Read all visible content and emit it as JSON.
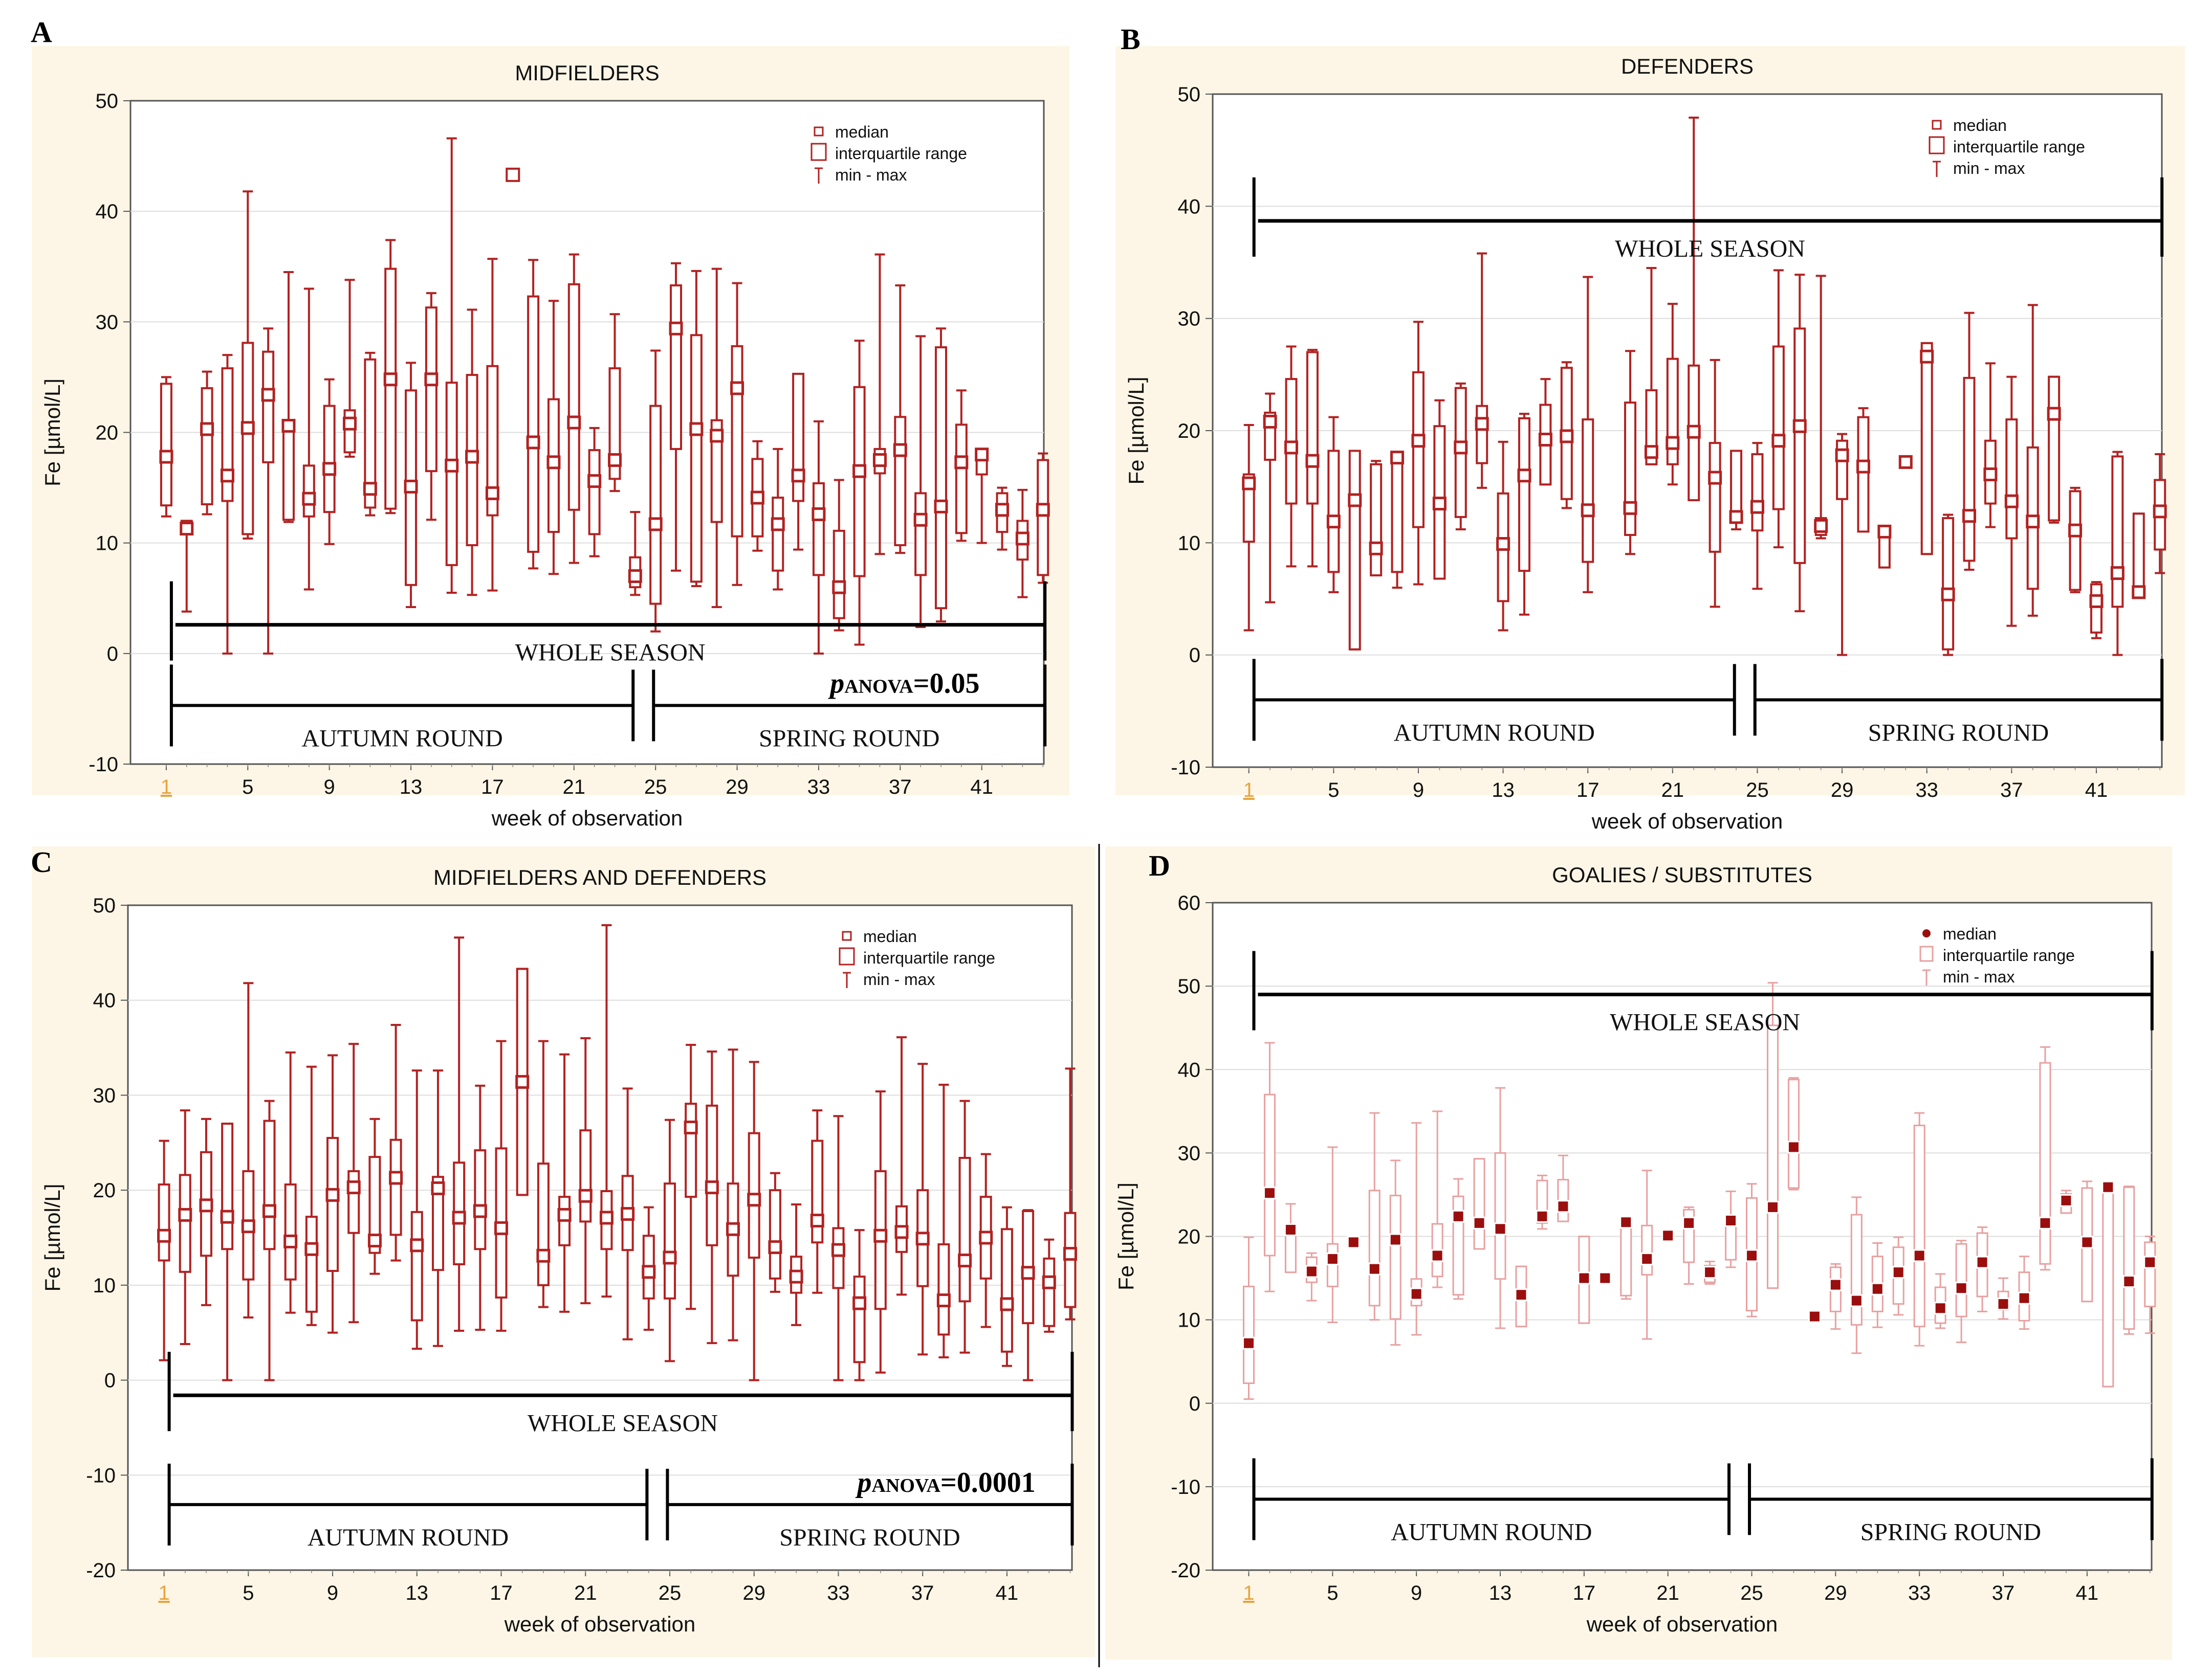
{
  "figure": {
    "panels": [
      {
        "letter": "A",
        "title": "MIDFIELDERS"
      },
      {
        "letter": "B",
        "title": "DEFENDERS"
      },
      {
        "letter": "C",
        "title": "MIDFIELDERS AND DEFENDERS"
      },
      {
        "letter": "D",
        "title": "GOALIES / SUBSTITUTES"
      }
    ],
    "colors": {
      "background": "#fdf6e6",
      "box": "#b22222",
      "box_light": "#e8a0a0",
      "tick_highlight": "#e8a33d",
      "bracket": "#000000"
    }
  },
  "chart_data": [
    {
      "type": "boxplot",
      "panel": "A",
      "title": "MIDFIELDERS",
      "xlabel": "week of observation",
      "ylabel": "Fe [µmol/L]",
      "ylim": [
        -10,
        50
      ],
      "yticks": [
        -10,
        0,
        10,
        20,
        30,
        40,
        50
      ],
      "xticks": [
        "1",
        "5",
        "9",
        "13",
        "17",
        "21",
        "25",
        "29",
        "33",
        "37",
        "41"
      ],
      "legend": [
        "median",
        "interquartile range",
        "min - max"
      ],
      "legend_style": "box",
      "outlier": {
        "week": 18,
        "value": 43.3
      },
      "median": [
        17.8,
        11.3,
        20.3,
        16.1,
        20.4,
        23.4,
        20.6,
        14.0,
        16.7,
        20.8,
        14.9,
        24.8,
        15.1,
        24.8,
        17.0,
        17.8,
        14.5,
        null,
        19.1,
        17.3,
        20.9,
        15.6,
        17.5,
        7.0,
        11.7,
        29.4,
        20.3,
        19.7,
        24.0,
        14.1,
        11.7,
        16.1,
        12.6,
        6.0,
        16.5,
        17.5,
        18.4,
        12.1,
        13.3,
        17.3,
        18.0,
        13.0,
        10.4,
        13.0
      ],
      "q1": [
        13.4,
        11.0,
        13.5,
        13.8,
        10.8,
        17.3,
        12.1,
        12.4,
        12.8,
        18.2,
        13.2,
        13.1,
        6.2,
        16.5,
        8.0,
        9.8,
        12.5,
        null,
        9.2,
        11.0,
        13.0,
        10.8,
        15.8,
        6.0,
        4.5,
        18.5,
        6.5,
        11.9,
        10.6,
        10.6,
        7.5,
        13.8,
        7.1,
        3.2,
        7.0,
        16.3,
        9.8,
        7.1,
        4.1,
        10.9,
        16.2,
        11.0,
        8.5,
        7.1
      ],
      "q3": [
        24.4,
        12.0,
        24.0,
        25.8,
        28.1,
        27.3,
        20.9,
        17.0,
        22.4,
        22.0,
        26.6,
        34.8,
        23.8,
        31.3,
        24.5,
        25.2,
        26.0,
        null,
        32.3,
        23.0,
        33.4,
        18.4,
        25.8,
        8.7,
        22.4,
        33.3,
        28.8,
        21.1,
        27.8,
        17.6,
        14.1,
        25.3,
        15.4,
        11.1,
        24.1,
        18.5,
        21.4,
        14.5,
        27.7,
        20.7,
        18.3,
        14.5,
        12.0,
        17.5
      ],
      "min": [
        12.4,
        3.8,
        12.6,
        0.0,
        10.4,
        0.0,
        11.9,
        5.8,
        9.9,
        17.8,
        12.5,
        12.7,
        4.2,
        12.1,
        5.5,
        5.3,
        5.7,
        null,
        7.7,
        7.2,
        8.2,
        8.8,
        14.7,
        5.3,
        2.0,
        7.5,
        6.1,
        4.2,
        6.2,
        9.3,
        5.8,
        9.4,
        0.0,
        2.1,
        0.8,
        9.0,
        9.1,
        2.4,
        2.9,
        10.2,
        10.0,
        9.4,
        5.1,
        6.4
      ],
      "max": [
        25.0,
        12.0,
        25.5,
        27.0,
        41.8,
        29.4,
        34.5,
        33.0,
        24.8,
        33.8,
        27.2,
        37.4,
        26.3,
        32.6,
        46.6,
        31.1,
        35.7,
        null,
        35.6,
        31.9,
        36.1,
        20.4,
        30.7,
        12.8,
        27.4,
        35.3,
        34.6,
        34.8,
        33.5,
        19.2,
        18.5,
        25.2,
        21.0,
        15.7,
        28.3,
        36.1,
        33.3,
        28.7,
        29.4,
        23.8,
        18.2,
        15.0,
        14.8,
        18.1
      ],
      "annotations": {
        "whole_season": {
          "label": "WHOLE SEASON",
          "value": 2.6
        },
        "autumn_round": {
          "label": "AUTUMN ROUND",
          "value": -4.7,
          "weeks": [
            1,
            24
          ]
        },
        "spring_round": {
          "label": "SPRING ROUND",
          "value": -4.7,
          "weeks": [
            25,
            44
          ]
        },
        "p_value": {
          "prefix": "p",
          "sub": "ANOVA",
          "text": "=0.05"
        }
      }
    },
    {
      "type": "boxplot",
      "panel": "B",
      "title": "DEFENDERS",
      "xlabel": "week of observation",
      "ylabel": "Fe [µmol/L]",
      "ylim": [
        -10,
        50
      ],
      "yticks": [
        -10,
        0,
        10,
        20,
        30,
        40,
        50
      ],
      "xticks": [
        "1",
        "5",
        "9",
        "13",
        "17",
        "21",
        "25",
        "29",
        "33",
        "37",
        "41"
      ],
      "legend": [
        "median",
        "interquartile range",
        "min - max"
      ],
      "legend_style": "box",
      "median": [
        15.3,
        20.8,
        18.5,
        17.3,
        11.9,
        13.8,
        9.5,
        17.6,
        19.1,
        13.5,
        18.5,
        20.6,
        9.9,
        16.0,
        19.2,
        19.5,
        12.9,
        null,
        13.1,
        18.1,
        18.9,
        19.9,
        15.8,
        12.3,
        13.2,
        19.1,
        20.4,
        11.5,
        17.8,
        16.8,
        11.0,
        17.2,
        26.6,
        5.4,
        12.4,
        16.1,
        13.7,
        11.9,
        21.5,
        11.1,
        4.8,
        7.3,
        5.6,
        12.8
      ],
      "q1": [
        10.1,
        17.4,
        13.5,
        13.5,
        7.4,
        0.5,
        7.1,
        7.4,
        11.4,
        6.8,
        12.3,
        17.1,
        4.8,
        7.5,
        15.2,
        13.9,
        8.3,
        null,
        10.7,
        17.0,
        17.0,
        13.8,
        9.2,
        11.9,
        11.1,
        13.0,
        8.2,
        10.7,
        13.9,
        11.0,
        7.8,
        17.0,
        9.0,
        0.5,
        8.4,
        13.5,
        10.4,
        5.9,
        12.0,
        5.8,
        2.0,
        4.3,
        5.3,
        9.4
      ],
      "q3": [
        16.1,
        21.6,
        24.6,
        27.0,
        18.2,
        18.2,
        17.0,
        18.1,
        25.2,
        20.4,
        23.8,
        22.2,
        14.4,
        21.1,
        22.3,
        25.6,
        21.0,
        null,
        22.5,
        23.6,
        26.4,
        25.8,
        18.9,
        18.2,
        17.9,
        27.5,
        29.1,
        12.2,
        19.1,
        21.2,
        11.0,
        17.5,
        27.8,
        12.2,
        24.7,
        19.1,
        21.0,
        18.5,
        24.8,
        14.6,
        6.3,
        17.7,
        12.6,
        15.6
      ],
      "min": [
        2.2,
        4.7,
        7.9,
        7.9,
        5.6,
        0.5,
        7.1,
        6.0,
        6.3,
        6.8,
        11.2,
        14.9,
        2.2,
        3.6,
        15.2,
        13.1,
        5.6,
        null,
        9.0,
        17.0,
        15.2,
        13.9,
        4.3,
        11.2,
        5.9,
        9.6,
        3.9,
        10.4,
        0.0,
        11.5,
        7.8,
        17.0,
        9.0,
        0.0,
        7.6,
        11.4,
        2.6,
        3.5,
        11.8,
        5.6,
        1.5,
        0.0,
        5.1,
        7.3
      ],
      "max": [
        20.5,
        23.3,
        27.5,
        27.2,
        21.2,
        18.2,
        17.3,
        18.1,
        29.7,
        22.7,
        24.2,
        35.8,
        19.0,
        21.5,
        24.6,
        26.1,
        33.7,
        null,
        27.1,
        34.5,
        31.3,
        47.9,
        26.3,
        18.2,
        18.9,
        34.3,
        33.9,
        33.8,
        19.7,
        22.0,
        11.5,
        17.7,
        27.8,
        12.5,
        30.5,
        26.0,
        24.8,
        31.2,
        24.8,
        14.9,
        6.5,
        18.1,
        12.6,
        17.9
      ],
      "annotations": {
        "whole_season": {
          "label": "WHOLE SEASON",
          "value": 38.7
        },
        "autumn_round": {
          "label": "AUTUMN ROUND",
          "value": -4.0,
          "weeks": [
            1,
            24
          ]
        },
        "spring_round": {
          "label": "SPRING ROUND",
          "value": -4.0,
          "weeks": [
            25,
            44
          ]
        }
      }
    },
    {
      "type": "boxplot",
      "panel": "C",
      "title": "MIDFIELDERS AND DEFENDERS",
      "xlabel": "week of observation",
      "ylabel": "Fe [µmol/L]",
      "ylim": [
        -20,
        50
      ],
      "yticks": [
        -20,
        -10,
        0,
        10,
        20,
        30,
        40,
        50
      ],
      "xticks": [
        "1",
        "5",
        "9",
        "13",
        "17",
        "21",
        "25",
        "29",
        "33",
        "37",
        "41"
      ],
      "legend": [
        "median",
        "interquartile range",
        "min - max"
      ],
      "legend_style": "box",
      "median": [
        15.2,
        17.4,
        18.4,
        17.2,
        16.2,
        17.8,
        14.6,
        13.8,
        19.5,
        20.3,
        14.7,
        21.3,
        14.2,
        20.2,
        17.1,
        17.8,
        16.0,
        31.4,
        13.1,
        17.4,
        19.4,
        17.1,
        17.5,
        11.4,
        12.9,
        26.6,
        20.3,
        15.9,
        19.0,
        14.0,
        10.9,
        16.8,
        13.7,
        8.1,
        15.2,
        15.6,
        14.9,
        8.4,
        12.6,
        15.0,
        8.0,
        11.3,
        10.3,
        13.3
      ],
      "q1": [
        12.6,
        11.4,
        13.1,
        13.8,
        10.6,
        13.8,
        10.6,
        7.2,
        11.5,
        15.5,
        13.4,
        15.3,
        6.3,
        11.6,
        12.2,
        13.8,
        8.7,
        19.5,
        10.0,
        14.2,
        16.7,
        13.8,
        13.7,
        8.6,
        8.6,
        19.3,
        14.2,
        11.0,
        12.9,
        10.7,
        9.2,
        14.5,
        9.7,
        1.9,
        7.5,
        13.5,
        9.9,
        4.8,
        8.3,
        10.7,
        3.0,
        6.0,
        5.7,
        7.7
      ],
      "q3": [
        20.6,
        21.6,
        24.0,
        27.0,
        22.0,
        27.3,
        20.6,
        17.2,
        25.5,
        22.0,
        23.5,
        25.3,
        17.7,
        21.4,
        22.9,
        24.2,
        24.4,
        43.3,
        22.8,
        19.3,
        26.3,
        19.9,
        21.5,
        15.2,
        20.7,
        29.1,
        28.9,
        20.7,
        26.0,
        20.0,
        13.0,
        25.2,
        16.0,
        10.9,
        22.0,
        18.3,
        20.0,
        14.3,
        23.4,
        19.3,
        15.9,
        17.8,
        12.8,
        17.6
      ],
      "min": [
        2.1,
        3.8,
        7.9,
        0.0,
        6.6,
        0.0,
        7.1,
        5.8,
        5.0,
        6.1,
        11.2,
        12.6,
        3.3,
        3.6,
        5.2,
        5.3,
        5.2,
        19.5,
        7.7,
        7.2,
        8.1,
        8.8,
        4.3,
        5.3,
        2.0,
        7.5,
        3.9,
        4.2,
        0.0,
        9.3,
        5.8,
        9.2,
        0.0,
        0.0,
        0.8,
        9.0,
        2.7,
        2.4,
        2.9,
        5.6,
        1.5,
        0.0,
        5.1,
        6.4
      ],
      "max": [
        25.2,
        28.4,
        27.5,
        27.0,
        41.8,
        29.4,
        34.5,
        33.0,
        34.2,
        35.4,
        27.5,
        37.4,
        32.6,
        32.6,
        46.6,
        31.0,
        35.7,
        43.3,
        35.7,
        34.3,
        36.0,
        47.9,
        30.7,
        18.2,
        27.4,
        35.3,
        34.6,
        34.8,
        33.5,
        21.8,
        18.5,
        28.4,
        27.8,
        15.8,
        30.4,
        36.1,
        33.3,
        31.1,
        29.4,
        23.8,
        18.2,
        17.9,
        14.8,
        32.8
      ],
      "annotations": {
        "whole_season": {
          "label": "WHOLE SEASON",
          "value": -1.6
        },
        "autumn_round": {
          "label": "AUTUMN ROUND",
          "value": -13.1,
          "weeks": [
            1,
            24
          ]
        },
        "spring_round": {
          "label": "SPRING ROUND",
          "value": -13.1,
          "weeks": [
            25,
            44
          ]
        },
        "p_value": {
          "prefix": "p",
          "sub": "ANOVA",
          "text": "=0.0001"
        }
      }
    },
    {
      "type": "boxplot",
      "panel": "D",
      "title": "GOALIES / SUBSTITUTES",
      "xlabel": "week of observation",
      "ylabel": "Fe [µmol/L]",
      "ylim": [
        -20,
        60
      ],
      "yticks": [
        -20,
        -10,
        0,
        10,
        20,
        30,
        40,
        50,
        60
      ],
      "xticks": [
        "1",
        "5",
        "9",
        "13",
        "17",
        "21",
        "25",
        "29",
        "33",
        "37",
        "41"
      ],
      "legend": [
        "median",
        "interquartile range",
        "min - max"
      ],
      "legend_style": "dot",
      "median": [
        7.2,
        25.2,
        20.8,
        15.8,
        17.3,
        19.3,
        16.1,
        19.6,
        13.1,
        17.7,
        22.4,
        21.6,
        20.9,
        13.0,
        22.4,
        23.6,
        15.0,
        15.0,
        21.7,
        17.3,
        20.1,
        21.6,
        15.7,
        21.9,
        17.7,
        23.5,
        30.7,
        10.4,
        14.2,
        12.3,
        13.7,
        15.7,
        17.7,
        11.4,
        13.8,
        16.9,
        11.9,
        12.6,
        21.6,
        24.3,
        19.3,
        25.9,
        14.6,
        16.9
      ],
      "q1": [
        2.4,
        17.7,
        15.7,
        14.5,
        14.0,
        19.3,
        11.7,
        10.1,
        11.7,
        15.2,
        13.0,
        18.5,
        14.9,
        9.2,
        21.6,
        21.8,
        9.6,
        15.0,
        12.9,
        15.4,
        20.1,
        16.9,
        14.5,
        17.2,
        11.1,
        13.8,
        25.8,
        10.4,
        11.0,
        9.4,
        11.0,
        11.9,
        9.2,
        9.6,
        10.4,
        12.8,
        11.2,
        9.9,
        16.7,
        22.8,
        12.2,
        2.0,
        8.9,
        11.6
      ],
      "q3": [
        14.0,
        37.0,
        21.1,
        17.5,
        19.1,
        19.3,
        25.5,
        24.9,
        14.9,
        21.5,
        24.8,
        29.3,
        30.0,
        16.4,
        26.7,
        26.8,
        20.0,
        15.0,
        21.8,
        21.3,
        20.1,
        23.2,
        16.5,
        21.9,
        24.6,
        45.3,
        38.8,
        10.4,
        16.3,
        22.6,
        17.6,
        18.7,
        33.3,
        13.9,
        19.1,
        20.4,
        13.4,
        15.7,
        40.8,
        25.1,
        25.8,
        26.0,
        25.9,
        19.3
      ],
      "min": [
        0.5,
        13.4,
        15.7,
        12.3,
        9.7,
        19.3,
        10.0,
        7.0,
        8.2,
        13.9,
        12.5,
        18.5,
        9.0,
        9.2,
        20.9,
        21.8,
        9.6,
        15.0,
        12.5,
        7.7,
        20.1,
        14.3,
        14.3,
        16.3,
        10.4,
        13.8,
        25.6,
        10.4,
        8.9,
        6.0,
        9.1,
        10.6,
        6.9,
        9.0,
        7.3,
        11.0,
        10.1,
        8.9,
        16.0,
        22.8,
        12.2,
        2.0,
        8.3,
        8.4
      ],
      "max": [
        19.9,
        43.2,
        23.9,
        18.0,
        30.7,
        19.3,
        34.8,
        29.1,
        33.6,
        35.0,
        26.9,
        29.3,
        37.8,
        16.4,
        27.3,
        29.7,
        20.0,
        15.0,
        21.8,
        27.9,
        20.1,
        23.5,
        17.0,
        25.4,
        26.3,
        50.4,
        39.0,
        10.4,
        16.7,
        24.7,
        19.2,
        19.9,
        34.8,
        15.5,
        19.5,
        21.1,
        15.0,
        17.6,
        42.7,
        25.5,
        26.6,
        26.2,
        26.0,
        20.0
      ],
      "annotations": {
        "whole_season": {
          "label": "WHOLE SEASON",
          "value": 49.0
        },
        "autumn_round": {
          "label": "AUTUMN ROUND",
          "value": -11.5,
          "weeks": [
            1,
            24
          ]
        },
        "spring_round": {
          "label": "SPRING ROUND",
          "value": -11.5,
          "weeks": [
            25,
            44
          ]
        }
      }
    }
  ]
}
